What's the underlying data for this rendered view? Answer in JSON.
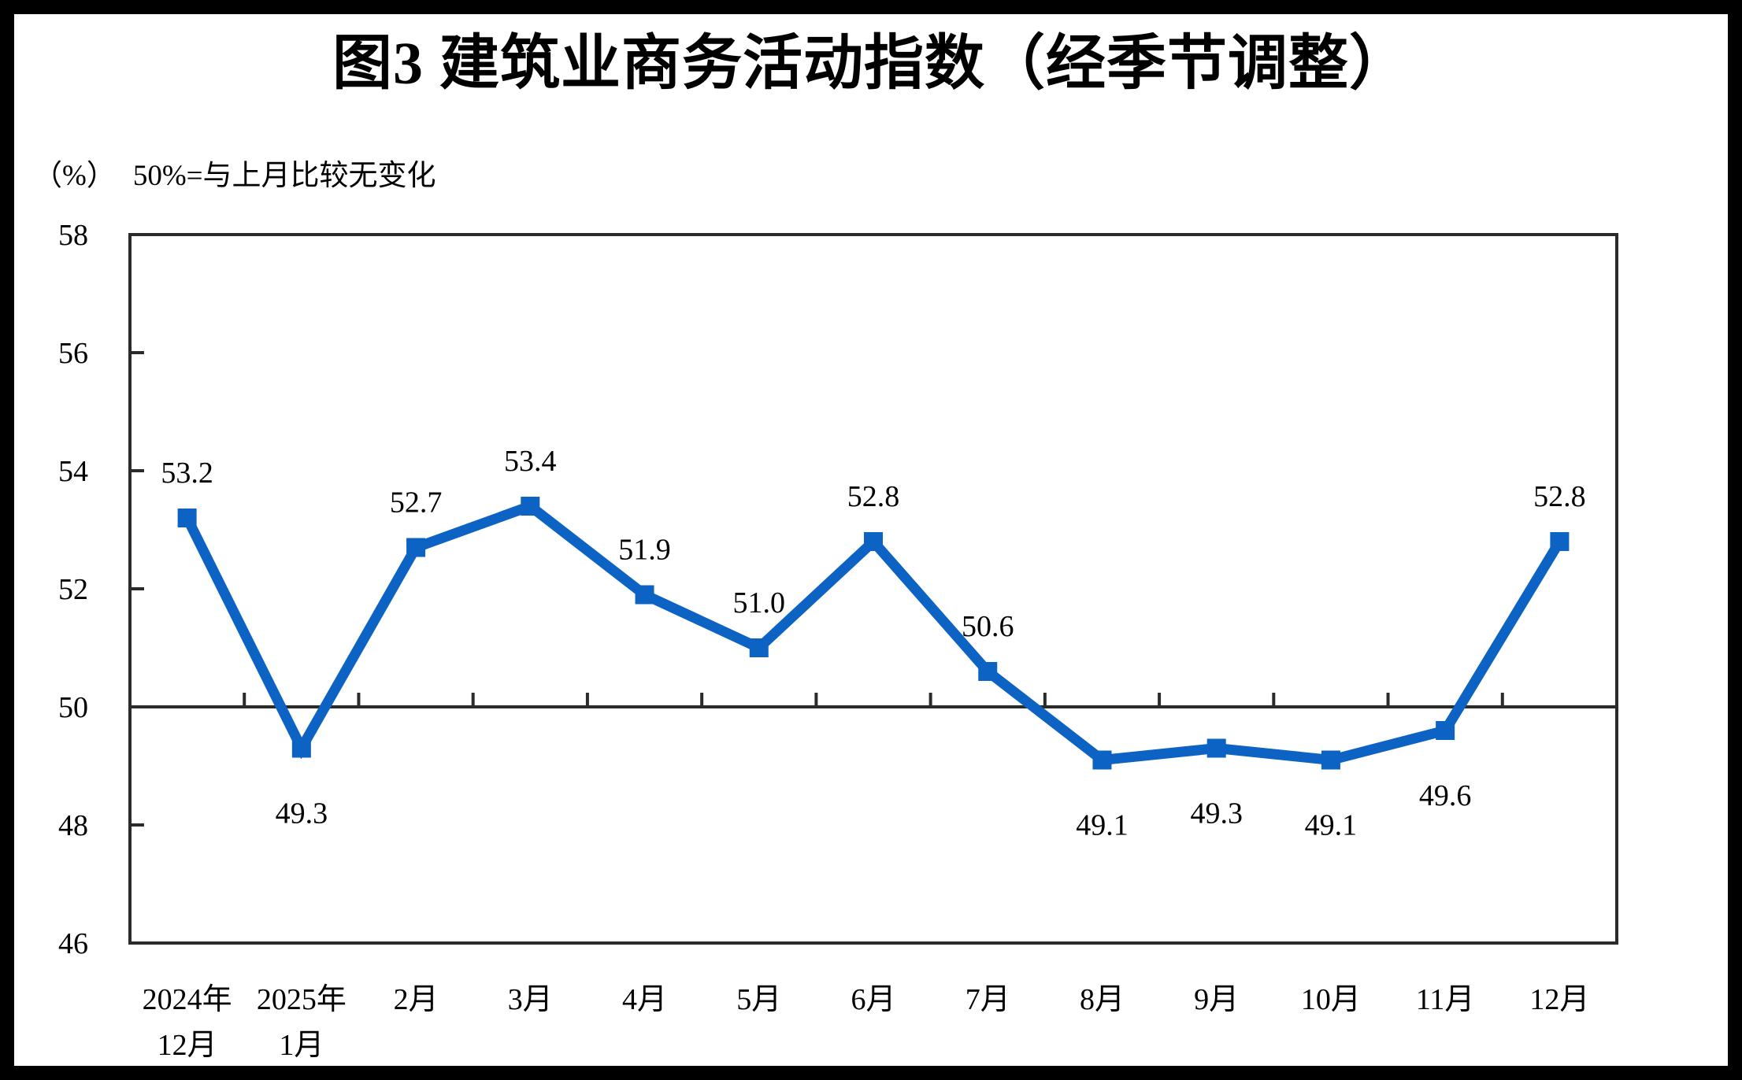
{
  "figure": {
    "title": "图3  建筑业商务活动指数（经季节调整）",
    "unit_label": "（%）",
    "note": "50%=与上月比较无变化"
  },
  "chart_data": {
    "type": "line",
    "title": "图3 建筑业商务活动指数（经季节调整）",
    "subtitle": "50%=与上月比较无变化",
    "unit": "%",
    "categories": [
      "2024年12月",
      "2025年1月",
      "2月",
      "3月",
      "4月",
      "5月",
      "6月",
      "7月",
      "8月",
      "9月",
      "10月",
      "11月",
      "12月"
    ],
    "category_label_lines": [
      [
        "2024年",
        "12月"
      ],
      [
        "2025年",
        "1月"
      ],
      [
        "2月"
      ],
      [
        "3月"
      ],
      [
        "4月"
      ],
      [
        "5月"
      ],
      [
        "6月"
      ],
      [
        "7月"
      ],
      [
        "8月"
      ],
      [
        "9月"
      ],
      [
        "10月"
      ],
      [
        "11月"
      ],
      [
        "12月"
      ]
    ],
    "series": [
      {
        "name": "建筑业商务活动指数（经季节调整）",
        "values": [
          53.2,
          49.3,
          52.7,
          53.4,
          51.9,
          51.0,
          52.8,
          50.6,
          49.1,
          49.3,
          49.1,
          49.6,
          52.8
        ]
      }
    ],
    "data_labels": [
      "53.2",
      "49.3",
      "52.7",
      "53.4",
      "51.9",
      "51.0",
      "52.8",
      "50.6",
      "49.1",
      "49.3",
      "49.1",
      "49.6",
      "52.8"
    ],
    "ylim": [
      46,
      58
    ],
    "yticks": [
      46,
      48,
      50,
      52,
      54,
      56,
      58
    ],
    "reference_line": 50,
    "grid": false,
    "legend": "none",
    "marker": "square",
    "colors": {
      "series": "#0C63C4",
      "axis": "#2B2B2B",
      "text": "#000000",
      "background": "#FFFFFF",
      "frame": "#000000"
    }
  }
}
